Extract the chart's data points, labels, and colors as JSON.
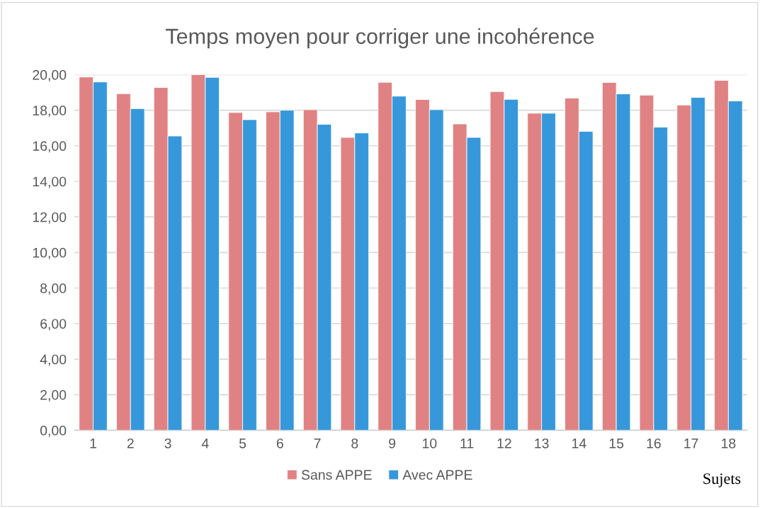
{
  "chart_data": {
    "type": "bar",
    "title": "Temps moyen pour corriger une incohérence",
    "xlabel": "Sujets",
    "categories": [
      "1",
      "2",
      "3",
      "4",
      "5",
      "6",
      "7",
      "8",
      "9",
      "10",
      "11",
      "12",
      "13",
      "14",
      "15",
      "16",
      "17",
      "18"
    ],
    "series": [
      {
        "name": "Sans APPE",
        "color": "#e08283",
        "values": [
          19.87,
          18.93,
          19.28,
          20.0,
          17.87,
          17.91,
          18.03,
          16.47,
          19.57,
          18.6,
          17.23,
          19.05,
          17.83,
          18.68,
          19.56,
          18.85,
          18.29,
          19.68
        ]
      },
      {
        "name": "Avec APPE",
        "color": "#3698db",
        "values": [
          19.59,
          18.09,
          16.55,
          19.85,
          17.47,
          18.0,
          17.21,
          16.72,
          18.79,
          18.03,
          16.47,
          18.61,
          17.83,
          16.81,
          18.92,
          17.05,
          18.72,
          18.52
        ]
      }
    ],
    "ylim": [
      0,
      20
    ],
    "yticks": [
      {
        "value": 0,
        "label": "0,00"
      },
      {
        "value": 2,
        "label": "2,00"
      },
      {
        "value": 4,
        "label": "4,00"
      },
      {
        "value": 6,
        "label": "6,00"
      },
      {
        "value": 8,
        "label": "8,00"
      },
      {
        "value": 10,
        "label": "10,00"
      },
      {
        "value": 12,
        "label": "12,00"
      },
      {
        "value": 14,
        "label": "14,00"
      },
      {
        "value": 16,
        "label": "16,00"
      },
      {
        "value": 18,
        "label": "18,00"
      },
      {
        "value": 20,
        "label": "20,00"
      }
    ],
    "grid": "y",
    "legend": "bottom"
  }
}
